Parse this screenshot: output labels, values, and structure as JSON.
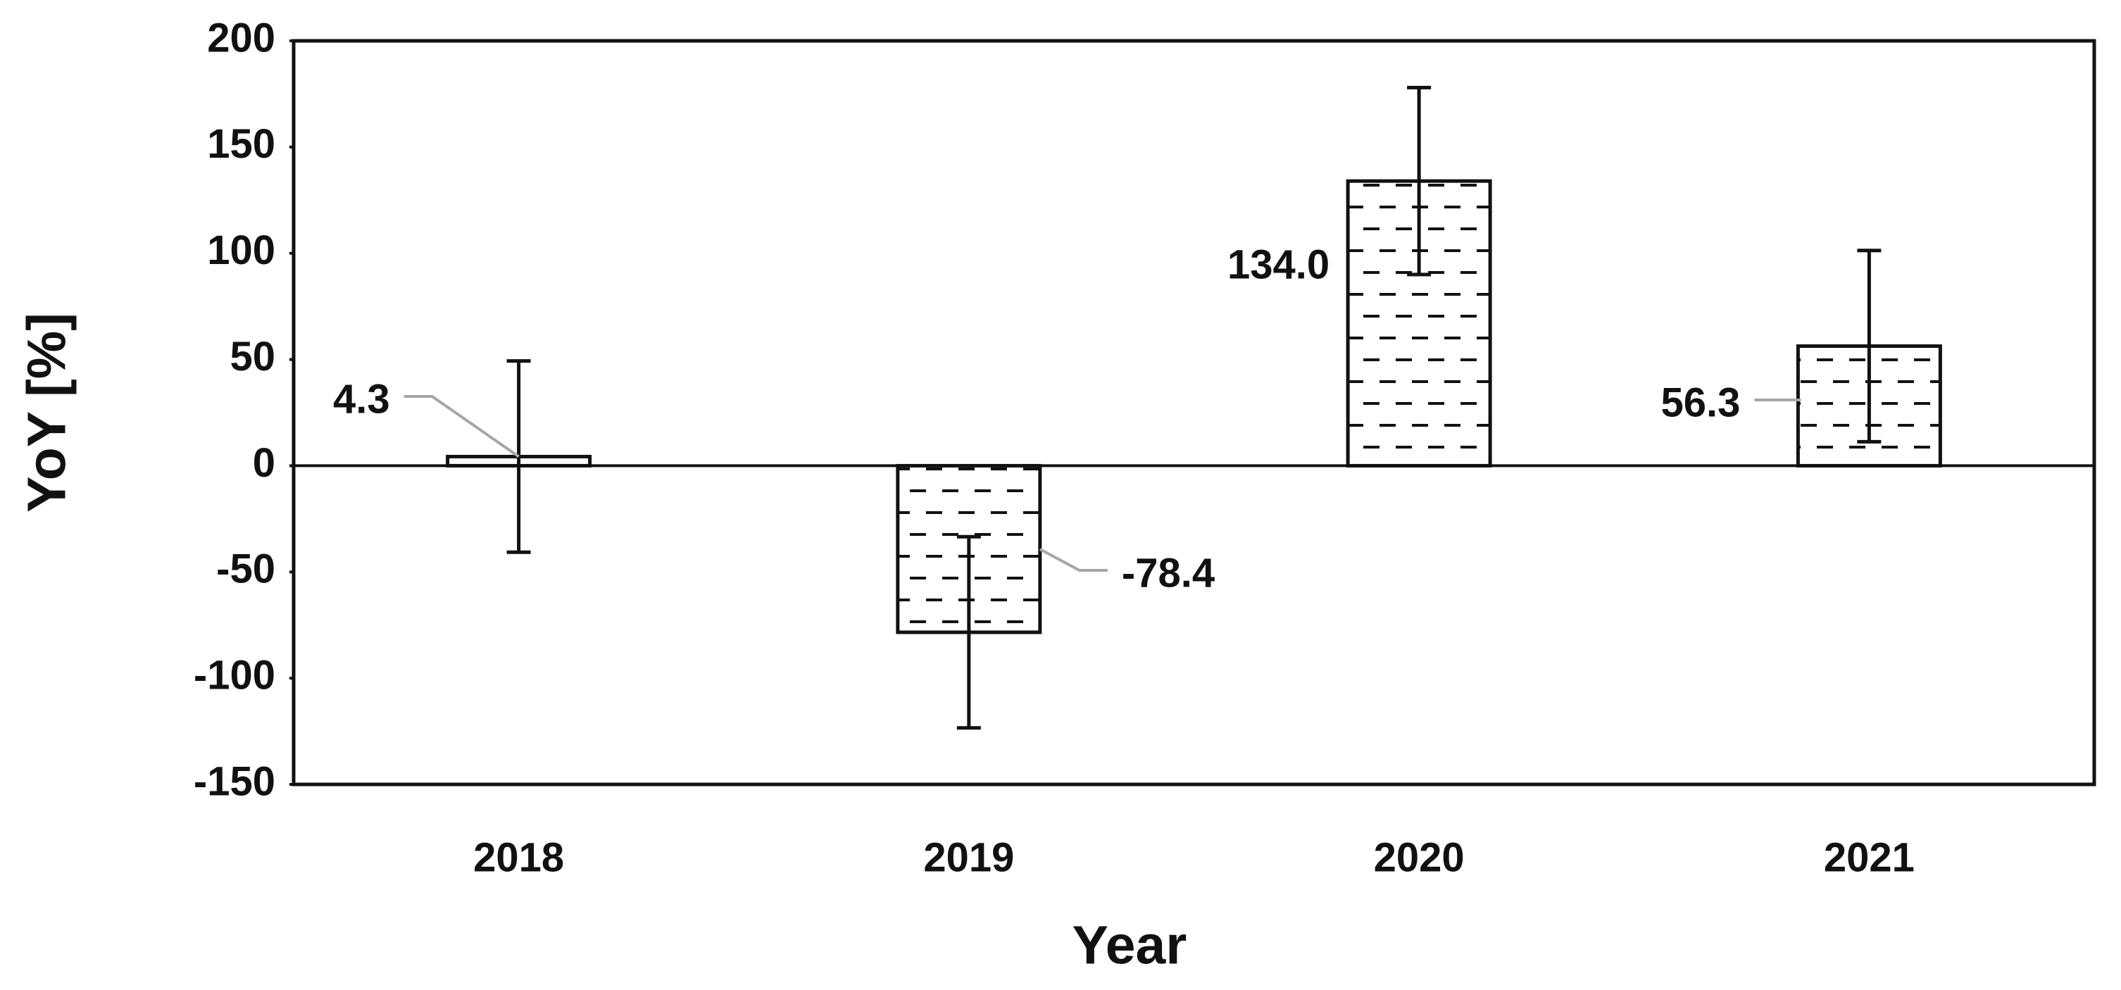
{
  "chart_data": {
    "type": "bar",
    "x_label": "Year",
    "y_label": "YoY [%]",
    "categories": [
      "2018",
      "2019",
      "2020",
      "2021"
    ],
    "values": [
      4.3,
      -78.4,
      134.0,
      56.3
    ],
    "value_labels": [
      "4.3",
      "-78.4",
      "134.0",
      "56.3"
    ],
    "errors": [
      45,
      45,
      44,
      45
    ],
    "color": "#ffffff",
    "ylim": [
      -150,
      200
    ],
    "yticks": [
      -150,
      -100,
      -50,
      0,
      50,
      100,
      150,
      200
    ],
    "grid": false
  }
}
